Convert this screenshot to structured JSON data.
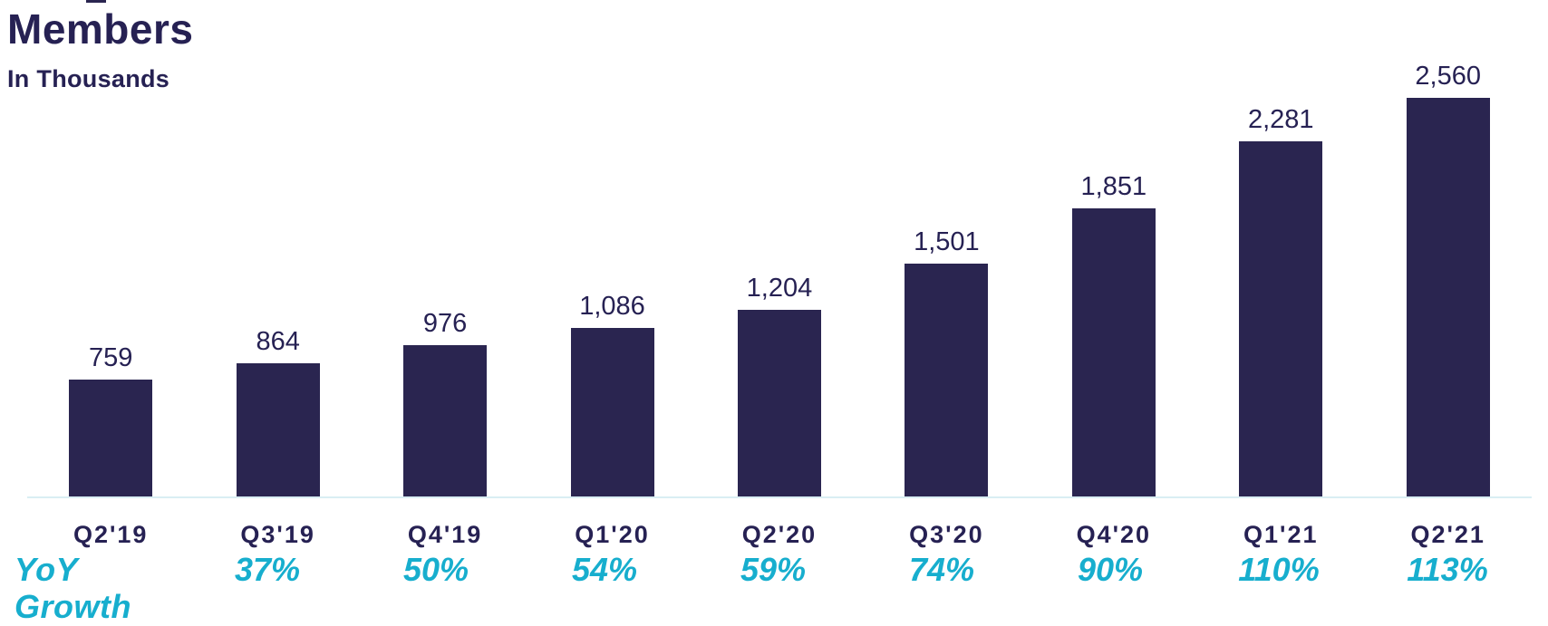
{
  "header": {
    "title": "Members",
    "subtitle": "In Thousands"
  },
  "chart_data": {
    "type": "bar",
    "title": "Members",
    "subtitle": "In Thousands",
    "unit": "thousands of members",
    "categories": [
      "Q2'19",
      "Q3'19",
      "Q4'19",
      "Q1'20",
      "Q2'20",
      "Q3'20",
      "Q4'20",
      "Q1'21",
      "Q2'21"
    ],
    "values": [
      759,
      864,
      976,
      1086,
      1204,
      1501,
      1851,
      2281,
      2560
    ],
    "value_labels": [
      "759",
      "864",
      "976",
      "1,086",
      "1,204",
      "1,501",
      "1,851",
      "2,281",
      "2,560"
    ],
    "growth_row_label": "YoY Growth",
    "yoy_growth": [
      "",
      "37%",
      "50%",
      "54%",
      "59%",
      "74%",
      "90%",
      "110%",
      "113%"
    ],
    "ylim": [
      0,
      2560
    ],
    "grid": false,
    "legend": false,
    "bar_color": "#2A2550",
    "growth_text_color": "#17AECE"
  },
  "colors": {
    "bar": "#2A2550",
    "text": "#262153",
    "accent": "#17AECE",
    "axis_line": "#D9EEF3",
    "background": "#FFFFFF"
  }
}
